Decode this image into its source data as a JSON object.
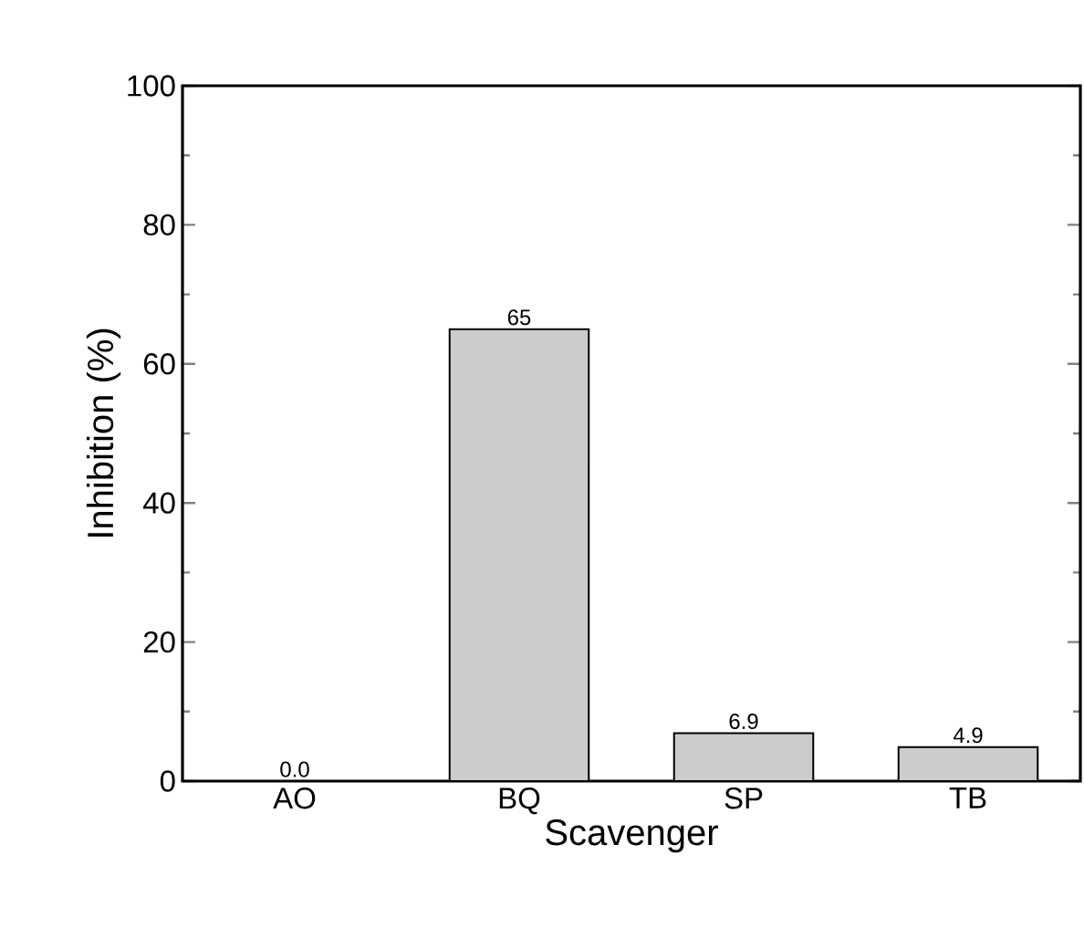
{
  "chart_data": {
    "type": "bar",
    "xlabel": "Scavenger",
    "ylabel": "Inhibition (%)",
    "categories": [
      "AO",
      "BQ",
      "SP",
      "TB"
    ],
    "values": [
      0.0,
      65,
      6.9,
      4.9
    ],
    "value_labels": [
      "0.0",
      "65",
      "6.9",
      "4.9"
    ],
    "color": "#cccccc",
    "ylim": [
      0,
      100
    ],
    "yticks": [
      0,
      20,
      40,
      60,
      80,
      100
    ],
    "grid": false
  }
}
